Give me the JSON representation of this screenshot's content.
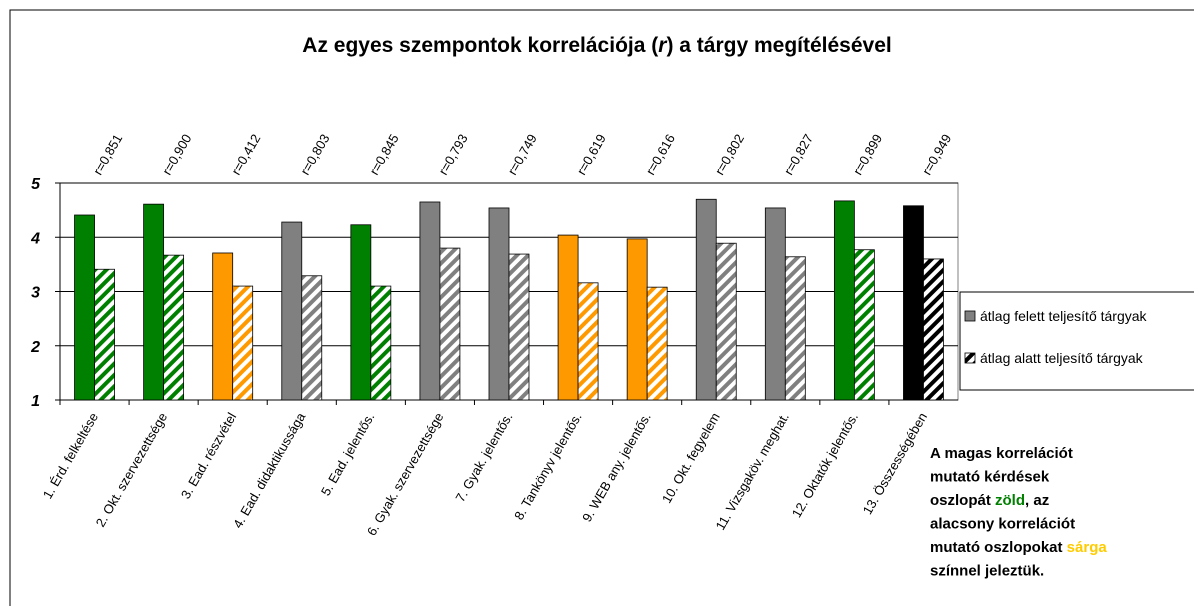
{
  "chart_data": {
    "type": "bar",
    "title_parts": [
      {
        "text": "Az egyes szempontok korrelációja ("
      },
      {
        "text": "r",
        "italic": true
      },
      {
        "text": ") a tárgy megítélésével"
      }
    ],
    "categories": [
      "1. Érd. felkeltése",
      "2. Okt. szervezettsége",
      "3. Ead. részvétel",
      "4. Ead. didaktikussága",
      "5. Ead. jelentős.",
      "6. Gyak. szervezettsége",
      "7. Gyak. jelentős.",
      "8. Tankönyv jelentős.",
      "9. WEB any. jelentős.",
      "10. Okt. fegyelem",
      "11. Vizsgaköv. meghat.",
      "12. Oktatók jelentős.",
      "13. Összességében"
    ],
    "annotations": [
      "r=0,851",
      "r=0,900",
      "r=0,412",
      "r=0,803",
      "r=0,845",
      "r=0,793",
      "r=0,749",
      "r=0,619",
      "r=0,616",
      "r=0,802",
      "r=0,827",
      "r=0,899",
      "r=0,949"
    ],
    "bar_colors": [
      "#008000",
      "#008000",
      "#ff9900",
      "#808080",
      "#008000",
      "#808080",
      "#808080",
      "#ff9900",
      "#ff9900",
      "#808080",
      "#808080",
      "#008000",
      "#000000"
    ],
    "series": [
      {
        "name": "átlag felett teljesítő tárgyak",
        "color": "#808080",
        "pattern": "solid",
        "values": [
          4.41,
          4.61,
          3.71,
          4.28,
          4.23,
          4.65,
          4.54,
          4.04,
          3.97,
          4.7,
          4.54,
          4.67,
          4.58
        ]
      },
      {
        "name": "átlag alatt teljesítő tárgyak",
        "color": "#808080",
        "pattern": "hatch",
        "values": [
          3.41,
          3.67,
          3.1,
          3.29,
          3.1,
          3.8,
          3.69,
          3.16,
          3.08,
          3.89,
          3.64,
          3.77,
          3.6
        ]
      }
    ],
    "ylim": [
      1,
      5
    ],
    "yticks": [
      1,
      2,
      3,
      4,
      5
    ],
    "grid": true,
    "legend": "right",
    "note": [
      [
        {
          "text": "A magas korrelációt"
        }
      ],
      [
        {
          "text": "mutató kérdések"
        }
      ],
      [
        {
          "text": "oszlopát "
        },
        {
          "text": "zöld",
          "color": "#008000"
        },
        {
          "text": ", az"
        }
      ],
      [
        {
          "text": "alacsony korrelációt"
        }
      ],
      [
        {
          "text": "mutató oszlopokat "
        },
        {
          "text": "sárga",
          "color": "#ffcc00"
        }
      ],
      [
        {
          "text": "színnel jeleztük."
        }
      ]
    ]
  }
}
